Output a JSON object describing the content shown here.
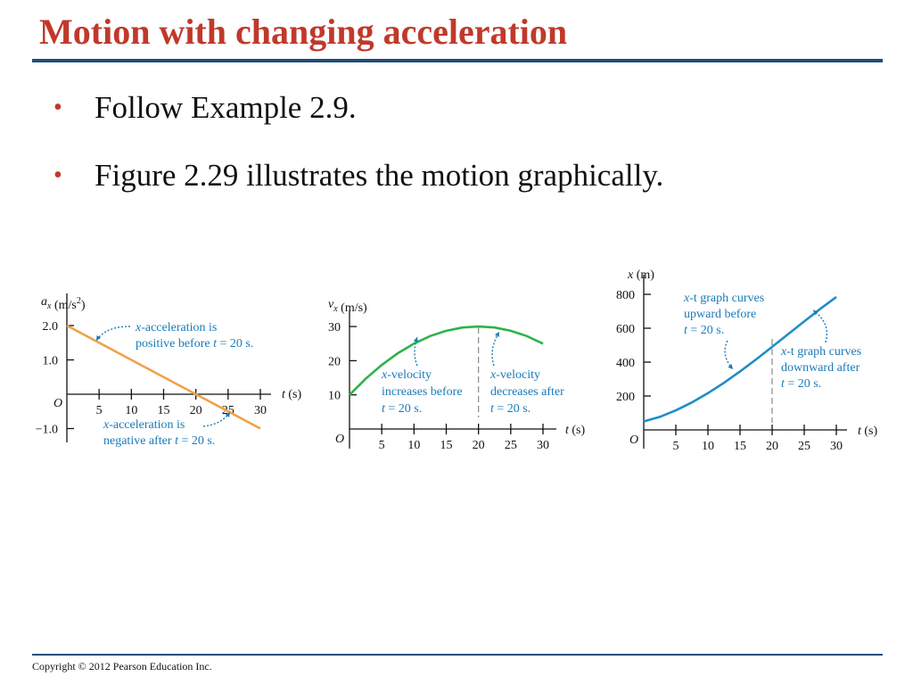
{
  "slide": {
    "title": "Motion with changing acceleration",
    "bullets": [
      "Follow Example 2.9.",
      "Figure 2.29 illustrates the motion graphically."
    ],
    "footer": "Copyright © 2012 Pearson Education Inc."
  },
  "colors": {
    "title": "#c0392b",
    "rule": "#1f4e79",
    "annotation": "#1a7ab8",
    "acceleration_line": "#f0a04b",
    "velocity_curve": "#2db34a",
    "position_curve": "#1f8dc9"
  },
  "chart_data": [
    {
      "type": "line",
      "ylabel": "a_x (m/s^2)",
      "xlabel": "t (s)",
      "xlim": [
        0,
        30
      ],
      "ylim": [
        -1.0,
        2.0
      ],
      "origin_label": "O",
      "x_ticks": [
        "5",
        "10",
        "15",
        "20",
        "25",
        "30"
      ],
      "y_ticks": [
        "2.0",
        "1.0",
        "−1.0"
      ],
      "series": [
        {
          "x": [
            0,
            30
          ],
          "y": [
            2.0,
            -1.0
          ]
        }
      ],
      "annotations": [
        {
          "lines": [
            "x-acceleration is",
            "positive before t = 20 s."
          ]
        },
        {
          "lines": [
            "x-acceleration is",
            "negative after t = 20 s."
          ]
        }
      ]
    },
    {
      "type": "line",
      "ylabel": "v_x (m/s)",
      "xlabel": "t (s)",
      "xlim": [
        0,
        30
      ],
      "ylim": [
        0,
        30
      ],
      "origin_label": "O",
      "x_ticks": [
        "5",
        "10",
        "15",
        "20",
        "25",
        "30"
      ],
      "y_ticks": [
        "30",
        "20",
        "10"
      ],
      "series": [
        {
          "x": [
            0,
            2.5,
            5,
            7.5,
            10,
            12.5,
            15,
            17.5,
            20,
            22.5,
            25,
            27.5,
            30
          ],
          "y": [
            10,
            14.7,
            18.75,
            22.2,
            25,
            27.2,
            28.75,
            29.7,
            30,
            29.7,
            28.75,
            27.2,
            25
          ]
        }
      ],
      "guide_x": 20,
      "annotations": [
        {
          "lines": [
            "x-velocity",
            "increases before",
            "t = 20 s."
          ]
        },
        {
          "lines": [
            "x-velocity",
            "decreases after",
            "t = 20 s."
          ]
        }
      ]
    },
    {
      "type": "line",
      "ylabel": "x (m)",
      "xlabel": "t (s)",
      "xlim": [
        0,
        30
      ],
      "ylim": [
        0,
        800
      ],
      "origin_label": "O",
      "x_ticks": [
        "5",
        "10",
        "15",
        "20",
        "25",
        "30"
      ],
      "y_ticks": [
        "800",
        "600",
        "400",
        "200"
      ],
      "series": [
        {
          "x": [
            0,
            2.5,
            5,
            7.5,
            10,
            12.5,
            15,
            17.5,
            20,
            22.5,
            25,
            27.5,
            30
          ],
          "y": [
            50,
            77,
            115,
            162,
            217,
            278,
            345,
            416,
            490,
            565,
            640,
            714,
            785
          ]
        }
      ],
      "guide_x": 20,
      "annotations": [
        {
          "lines": [
            "x-t graph curves",
            "upward before",
            "t = 20 s."
          ]
        },
        {
          "lines": [
            "x-t graph curves",
            "downward after",
            "t = 20 s."
          ]
        }
      ]
    }
  ]
}
